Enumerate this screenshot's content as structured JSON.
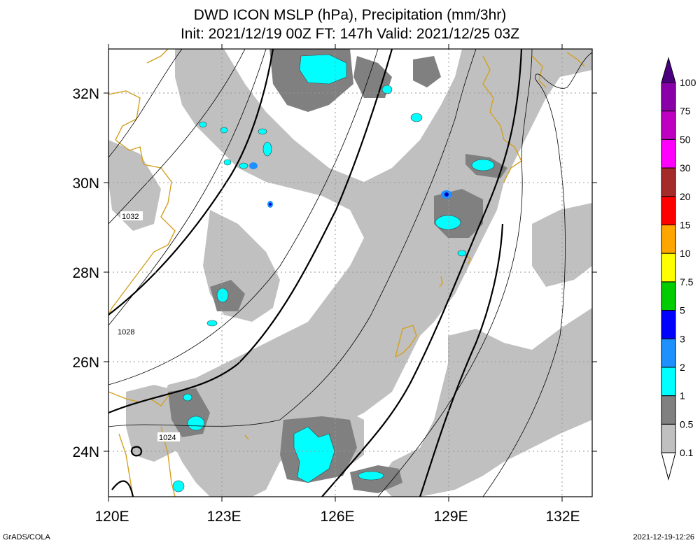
{
  "title": {
    "line1": "DWD ICON MSLP (hPa), Precipitation (mm/3hr)",
    "line2": "Init: 2021/12/19 00Z  FT: 147h  Valid: 2021/12/25 03Z"
  },
  "map": {
    "lat_labels": [
      "32N",
      "30N",
      "28N",
      "26N",
      "24N"
    ],
    "lon_labels": [
      "120E",
      "123E",
      "126E",
      "129E",
      "132E"
    ],
    "isobar_labels": [
      "1032",
      "1028",
      "1024"
    ],
    "colors": {
      "coast": "#d4a020",
      "precip_light": "#c0c0c0",
      "precip_medium": "#808080",
      "precip_heavy": "#00ffff",
      "precip_heavier": "#0000ff"
    }
  },
  "legend": {
    "labels": [
      "100",
      "75",
      "50",
      "30",
      "20",
      "15",
      "10",
      "7.5",
      "5",
      "3",
      "2",
      "1",
      "0.5",
      "0.1"
    ],
    "colors": [
      "#4b0082",
      "#8a00a8",
      "#c000c0",
      "#ff00ff",
      "#a52a2a",
      "#ff0000",
      "#ffa500",
      "#ffff00",
      "#00cc00",
      "#0000ff",
      "#1e90ff",
      "#00ffff",
      "#808080",
      "#c0c0c0"
    ]
  },
  "footer": {
    "left": "GrADS/COLA",
    "right": "2021-12-19-12:26"
  }
}
